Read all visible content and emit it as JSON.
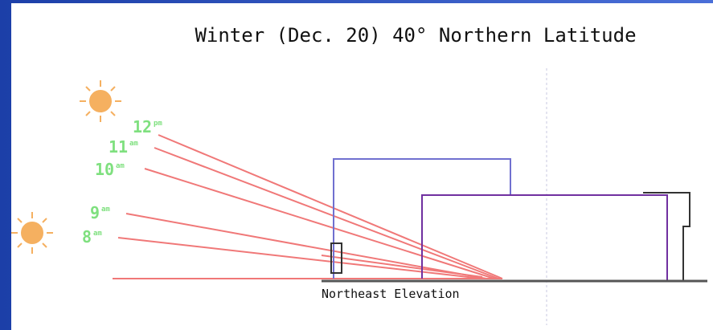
{
  "title": "Winter (Dec. 20) 40° Northern Latitude",
  "caption": "Northeast Elevation",
  "rays": [
    {
      "hour": "12",
      "suffix": "pm"
    },
    {
      "hour": "11",
      "suffix": "am"
    },
    {
      "hour": "10",
      "suffix": "am"
    },
    {
      "hour": "9",
      "suffix": "am"
    },
    {
      "hour": "8",
      "suffix": "am"
    }
  ]
}
